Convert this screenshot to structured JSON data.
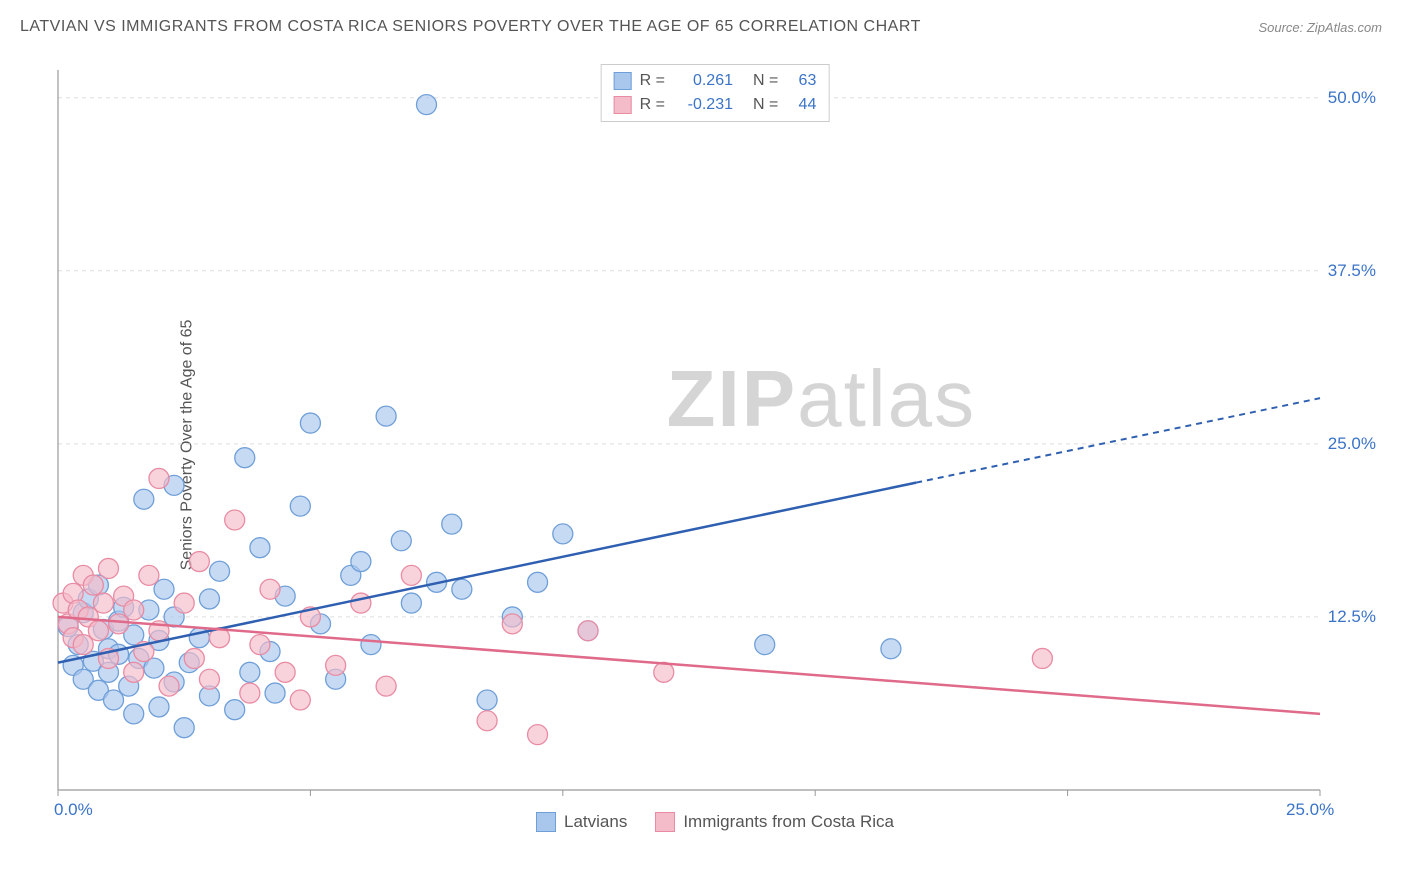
{
  "title": "LATVIAN VS IMMIGRANTS FROM COSTA RICA SENIORS POVERTY OVER THE AGE OF 65 CORRELATION CHART",
  "source": "Source: ZipAtlas.com",
  "ylabel": "Seniors Poverty Over the Age of 65",
  "watermark_a": "ZIP",
  "watermark_b": "atlas",
  "chart": {
    "type": "scatter-with-regression",
    "xlim": [
      0,
      25
    ],
    "ylim": [
      0,
      52
    ],
    "x_ticks": [
      0,
      25
    ],
    "x_tick_labels": [
      "0.0%",
      "25.0%"
    ],
    "y_ticks": [
      12.5,
      25.0,
      37.5,
      50.0
    ],
    "y_tick_labels": [
      "12.5%",
      "25.0%",
      "37.5%",
      "50.0%"
    ],
    "background_color": "#ffffff",
    "grid_color": "#dddddd",
    "axis_color": "#999999",
    "axis_label_color": "#3b73c7",
    "series": [
      {
        "name": "Latvians",
        "fill": "#a9c6ec",
        "stroke": "#6f9fd8",
        "line_color": "#2e5fb0",
        "R": "0.261",
        "N": "63",
        "regression": {
          "x1": 0,
          "y1": 9.2,
          "x2": 17,
          "y2": 22.2,
          "x2_dash": 25,
          "y2_dash": 28.3
        },
        "points": [
          [
            0.2,
            11.8
          ],
          [
            0.3,
            9.0
          ],
          [
            0.4,
            10.5
          ],
          [
            0.5,
            12.8
          ],
          [
            0.5,
            8.0
          ],
          [
            0.6,
            13.8
          ],
          [
            0.7,
            9.3
          ],
          [
            0.8,
            7.2
          ],
          [
            0.8,
            14.8
          ],
          [
            0.9,
            11.6
          ],
          [
            1.0,
            8.5
          ],
          [
            1.0,
            10.2
          ],
          [
            1.1,
            6.5
          ],
          [
            1.2,
            12.2
          ],
          [
            1.2,
            9.8
          ],
          [
            1.3,
            13.2
          ],
          [
            1.4,
            7.5
          ],
          [
            1.5,
            11.2
          ],
          [
            1.5,
            5.5
          ],
          [
            1.6,
            9.5
          ],
          [
            1.7,
            21.0
          ],
          [
            1.8,
            13.0
          ],
          [
            1.9,
            8.8
          ],
          [
            2.0,
            10.8
          ],
          [
            2.0,
            6.0
          ],
          [
            2.1,
            14.5
          ],
          [
            2.3,
            22.0
          ],
          [
            2.3,
            7.8
          ],
          [
            2.3,
            12.5
          ],
          [
            2.5,
            4.5
          ],
          [
            2.6,
            9.2
          ],
          [
            2.8,
            11.0
          ],
          [
            3.0,
            13.8
          ],
          [
            3.0,
            6.8
          ],
          [
            3.2,
            15.8
          ],
          [
            3.5,
            5.8
          ],
          [
            3.7,
            24.0
          ],
          [
            3.8,
            8.5
          ],
          [
            4.0,
            17.5
          ],
          [
            4.2,
            10.0
          ],
          [
            4.3,
            7.0
          ],
          [
            4.5,
            14.0
          ],
          [
            4.8,
            20.5
          ],
          [
            5.0,
            26.5
          ],
          [
            5.2,
            12.0
          ],
          [
            5.5,
            8.0
          ],
          [
            5.8,
            15.5
          ],
          [
            6.0,
            16.5
          ],
          [
            6.2,
            10.5
          ],
          [
            6.5,
            27.0
          ],
          [
            6.8,
            18.0
          ],
          [
            7.0,
            13.5
          ],
          [
            7.3,
            49.5
          ],
          [
            7.5,
            15.0
          ],
          [
            7.8,
            19.2
          ],
          [
            8.0,
            14.5
          ],
          [
            8.5,
            6.5
          ],
          [
            9.0,
            12.5
          ],
          [
            9.5,
            15.0
          ],
          [
            10.0,
            18.5
          ],
          [
            10.5,
            11.5
          ],
          [
            14.0,
            10.5
          ],
          [
            16.5,
            10.2
          ]
        ]
      },
      {
        "name": "Immigrants from Costa Rica",
        "fill": "#f4bcc9",
        "stroke": "#e88ba3",
        "line_color": "#e06a8a",
        "R": "-0.231",
        "N": "44",
        "regression": {
          "x1": 0,
          "y1": 12.5,
          "x2": 25,
          "y2": 5.5
        },
        "points": [
          [
            0.1,
            13.5
          ],
          [
            0.2,
            12.0
          ],
          [
            0.3,
            14.2
          ],
          [
            0.3,
            11.0
          ],
          [
            0.4,
            13.0
          ],
          [
            0.5,
            15.5
          ],
          [
            0.5,
            10.5
          ],
          [
            0.6,
            12.5
          ],
          [
            0.7,
            14.8
          ],
          [
            0.8,
            11.5
          ],
          [
            0.9,
            13.5
          ],
          [
            1.0,
            9.5
          ],
          [
            1.0,
            16.0
          ],
          [
            1.2,
            12.0
          ],
          [
            1.3,
            14.0
          ],
          [
            1.5,
            8.5
          ],
          [
            1.5,
            13.0
          ],
          [
            1.7,
            10.0
          ],
          [
            1.8,
            15.5
          ],
          [
            2.0,
            11.5
          ],
          [
            2.0,
            22.5
          ],
          [
            2.2,
            7.5
          ],
          [
            2.5,
            13.5
          ],
          [
            2.7,
            9.5
          ],
          [
            2.8,
            16.5
          ],
          [
            3.0,
            8.0
          ],
          [
            3.2,
            11.0
          ],
          [
            3.5,
            19.5
          ],
          [
            3.8,
            7.0
          ],
          [
            4.0,
            10.5
          ],
          [
            4.2,
            14.5
          ],
          [
            4.5,
            8.5
          ],
          [
            4.8,
            6.5
          ],
          [
            5.0,
            12.5
          ],
          [
            5.5,
            9.0
          ],
          [
            6.0,
            13.5
          ],
          [
            6.5,
            7.5
          ],
          [
            7.0,
            15.5
          ],
          [
            8.5,
            5.0
          ],
          [
            9.0,
            12.0
          ],
          [
            10.5,
            11.5
          ],
          [
            12.0,
            8.5
          ],
          [
            19.5,
            9.5
          ],
          [
            9.5,
            4.0
          ]
        ]
      }
    ]
  },
  "legend_top": {
    "rows": [
      {
        "sq_fill": "#a9c6ec",
        "sq_stroke": "#6f9fd8",
        "r_lbl": "R =",
        "r_val": "0.261",
        "n_lbl": "N =",
        "n_val": "63"
      },
      {
        "sq_fill": "#f4bcc9",
        "sq_stroke": "#e88ba3",
        "r_lbl": "R =",
        "r_val": "-0.231",
        "n_lbl": "N =",
        "n_val": "44"
      }
    ]
  },
  "legend_bottom": {
    "items": [
      {
        "sq_fill": "#a9c6ec",
        "sq_stroke": "#6f9fd8",
        "label": "Latvians"
      },
      {
        "sq_fill": "#f4bcc9",
        "sq_stroke": "#e88ba3",
        "label": "Immigrants from Costa Rica"
      }
    ]
  }
}
